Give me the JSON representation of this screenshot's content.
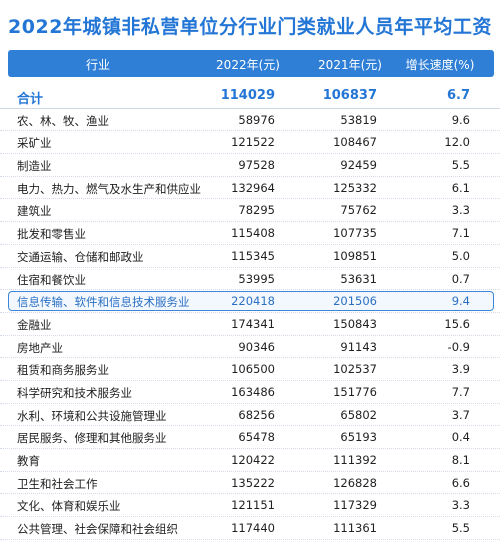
{
  "title": "2022年城镇非私营单位分行业门类就业人员年平均工资",
  "headers": {
    "industry": "行业",
    "y2022": "2022年(元)",
    "y2021": "2021年(元)",
    "growth": "增长速度(%)"
  },
  "rows": [
    {
      "industry": "合计",
      "y2022": "114029",
      "y2021": "106837",
      "growth": "6.7"
    },
    {
      "industry": "农、林、牧、渔业",
      "y2022": "58976",
      "y2021": "53819",
      "growth": "9.6"
    },
    {
      "industry": "采矿业",
      "y2022": "121522",
      "y2021": "108467",
      "growth": "12.0"
    },
    {
      "industry": "制造业",
      "y2022": "97528",
      "y2021": "92459",
      "growth": "5.5"
    },
    {
      "industry": "电力、热力、燃气及水生产和供应业",
      "y2022": "132964",
      "y2021": "125332",
      "growth": "6.1"
    },
    {
      "industry": "建筑业",
      "y2022": "78295",
      "y2021": "75762",
      "growth": "3.3"
    },
    {
      "industry": "批发和零售业",
      "y2022": "115408",
      "y2021": "107735",
      "growth": "7.1"
    },
    {
      "industry": "交通运输、仓储和邮政业",
      "y2022": "115345",
      "y2021": "109851",
      "growth": "5.0"
    },
    {
      "industry": "住宿和餐饮业",
      "y2022": "53995",
      "y2021": "53631",
      "growth": "0.7"
    },
    {
      "industry": "信息传输、软件和信息技术服务业",
      "y2022": "220418",
      "y2021": "201506",
      "growth": "9.4"
    },
    {
      "industry": "金融业",
      "y2022": "174341",
      "y2021": "150843",
      "growth": "15.6"
    },
    {
      "industry": "房地产业",
      "y2022": "90346",
      "y2021": "91143",
      "growth": "-0.9"
    },
    {
      "industry": "租赁和商务服务业",
      "y2022": "106500",
      "y2021": "102537",
      "growth": "3.9"
    },
    {
      "industry": "科学研究和技术服务业",
      "y2022": "163486",
      "y2021": "151776",
      "growth": "7.7"
    },
    {
      "industry": "水利、环境和公共设施管理业",
      "y2022": "68256",
      "y2021": "65802",
      "growth": "3.7"
    },
    {
      "industry": "居民服务、修理和其他服务业",
      "y2022": "65478",
      "y2021": "65193",
      "growth": "0.4"
    },
    {
      "industry": "教育",
      "y2022": "120422",
      "y2021": "111392",
      "growth": "8.1"
    },
    {
      "industry": "卫生和社会工作",
      "y2022": "135222",
      "y2021": "126828",
      "growth": "6.6"
    },
    {
      "industry": "文化、体育和娱乐业",
      "y2022": "121151",
      "y2021": "117329",
      "growth": "3.3"
    },
    {
      "industry": "公共管理、社会保障和社会组织",
      "y2022": "117440",
      "y2021": "111361",
      "growth": "5.5"
    }
  ]
}
